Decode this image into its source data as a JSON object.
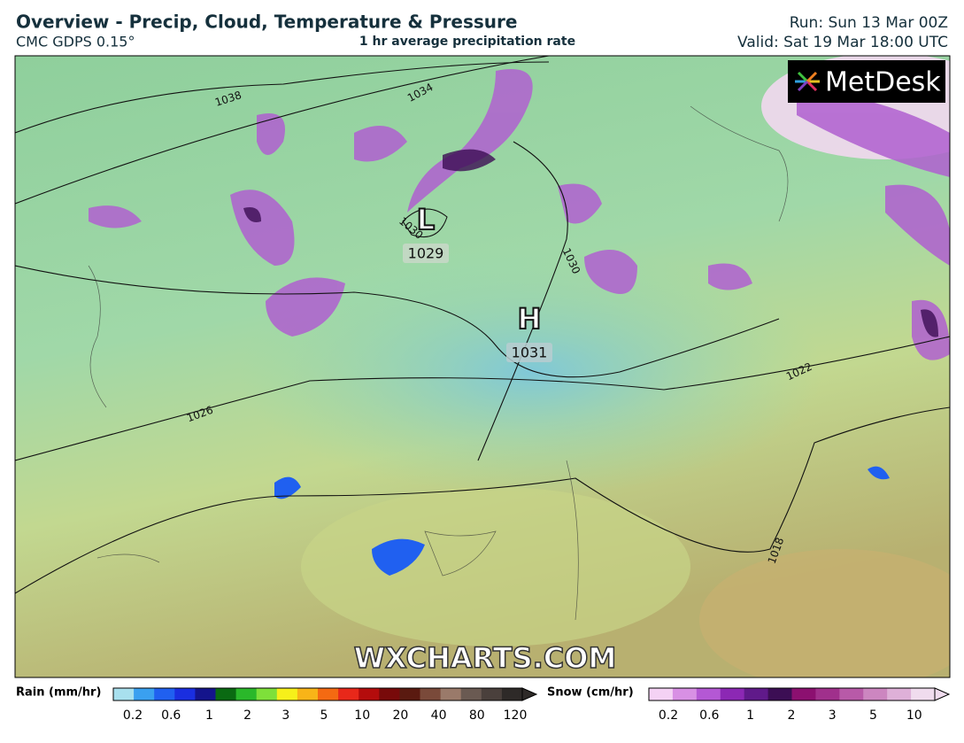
{
  "header": {
    "title": "Overview - Precip, Cloud, Temperature & Pressure",
    "model": "CMC GDPS 0.15°",
    "field": "1 hr average precipitation rate",
    "run": "Run: Sun 13 Mar 00Z",
    "valid": "Valid: Sat 19 Mar 18:00 UTC"
  },
  "map": {
    "logo": "MetDesk",
    "watermark": "WXCHARTS.COM",
    "isobars": [
      "1038",
      "1034",
      "1030",
      "1030",
      "1026",
      "1022",
      "1018"
    ],
    "centers": [
      {
        "symbol": "L",
        "pressure": "1029"
      },
      {
        "symbol": "H",
        "pressure": "1031"
      }
    ]
  },
  "legend": {
    "rain": {
      "label": "Rain (mm/hr)",
      "ticks": [
        "0.2",
        "0.6",
        "1",
        "2",
        "3",
        "5",
        "10",
        "20",
        "40",
        "80",
        "120"
      ],
      "colors": [
        "#a8e0ee",
        "#3aa0f0",
        "#2060f0",
        "#1a2ee0",
        "#14148c",
        "#0a6a12",
        "#2ab82a",
        "#7ee03a",
        "#f6f01a",
        "#f8b418",
        "#f46a12",
        "#e8281a",
        "#b40c0c",
        "#780a0a",
        "#5a1a10",
        "#7a4a3a",
        "#9a7a6a",
        "#6a5a52",
        "#4a403c",
        "#2e2a28"
      ]
    },
    "snow": {
      "label": "Snow (cm/hr)",
      "ticks": [
        "0.2",
        "0.6",
        "1",
        "2",
        "3",
        "5",
        "10"
      ],
      "colors": [
        "#f4d2f4",
        "#d890e4",
        "#b458d4",
        "#8c28b4",
        "#601a8a",
        "#3c0e54",
        "#8c1070",
        "#a0308c",
        "#b85aa8",
        "#cc86c0",
        "#deb0d8",
        "#f0dcee"
      ]
    }
  }
}
